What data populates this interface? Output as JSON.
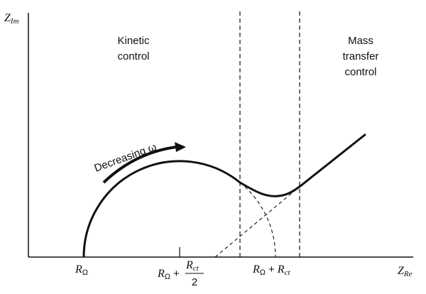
{
  "axes": {
    "y_label": {
      "main": "Z",
      "sub": "Im"
    },
    "x_label": {
      "main": "Z",
      "sub": "Re"
    }
  },
  "regions": {
    "kinetic": [
      "Kinetic",
      "control"
    ],
    "mass_transfer": [
      "Mass",
      "transfer",
      "control"
    ]
  },
  "annotation": "Decreasing ω",
  "x_marks": [
    {
      "main": "R",
      "sub": "Ω"
    },
    {
      "main": "R",
      "sub": "Ω",
      "op": "+",
      "num_main": "R",
      "num_sub": "ct",
      "den": "2"
    },
    {
      "main": "R",
      "sub": "Ω",
      "op": "+",
      "main2": "R",
      "sub2": "ct"
    }
  ]
}
